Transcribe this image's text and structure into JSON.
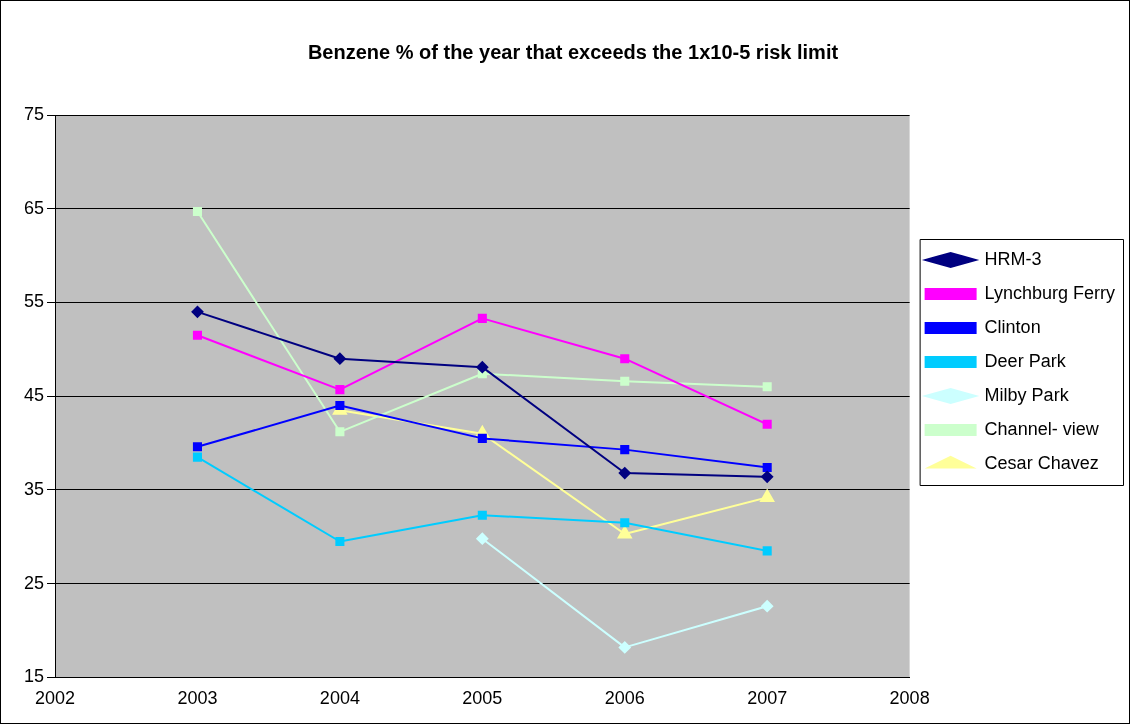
{
  "chart_data": {
    "type": "line",
    "title": "Benzene % of the year that exceeds the 1x10-5 risk limit",
    "x": [
      2003,
      2004,
      2005,
      2006,
      2007
    ],
    "xlim": [
      2002,
      2008
    ],
    "xticks": [
      2002,
      2003,
      2004,
      2005,
      2006,
      2007,
      2008
    ],
    "ylim": [
      15,
      75
    ],
    "yticks": [
      15,
      25,
      35,
      45,
      55,
      65,
      75
    ],
    "grid": "y",
    "legend": "right",
    "line_style": "solid",
    "series": [
      {
        "name": "HRM-3",
        "color": "#000080",
        "marker": "diamond",
        "values": [
          54.0,
          49.0,
          48.1,
          36.8,
          36.4
        ]
      },
      {
        "name": "Lynchburg Ferry",
        "color": "#ff00ff",
        "marker": "square",
        "values": [
          51.5,
          45.7,
          53.3,
          49.0,
          42.0
        ]
      },
      {
        "name": "Clinton",
        "color": "#0000ff",
        "marker": "square",
        "values": [
          39.6,
          44.0,
          40.5,
          39.3,
          37.4
        ]
      },
      {
        "name": "Deer Park",
        "color": "#00ccff",
        "marker": "square",
        "values": [
          38.5,
          29.5,
          32.3,
          31.5,
          28.5
        ]
      },
      {
        "name": "Milby Park",
        "color": "#ccffff",
        "marker": "diamond",
        "values": [
          null,
          null,
          29.8,
          18.2,
          22.6
        ]
      },
      {
        "name": "Channel- view",
        "color": "#ccffcc",
        "marker": "square",
        "values": [
          64.7,
          41.2,
          47.4,
          46.6,
          46.0
        ]
      },
      {
        "name": "Cesar Chavez",
        "color": "#ffff99",
        "marker": "triangle",
        "values": [
          null,
          43.5,
          41.0,
          30.3,
          34.2
        ]
      }
    ]
  }
}
